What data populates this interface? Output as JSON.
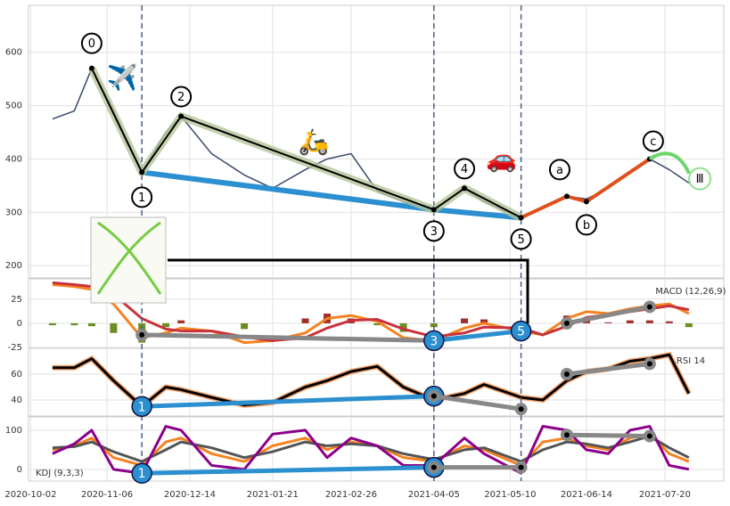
{
  "chart_data": [
    {
      "type": "line",
      "x": [
        "2020-10-12",
        "2020-10-22",
        "2020-10-30",
        "2020-11-09",
        "2020-11-22",
        "2020-12-03",
        "2020-12-10",
        "2020-12-24",
        "2021-01-08",
        "2021-01-21",
        "2021-02-05",
        "2021-02-15",
        "2021-02-26",
        "2021-03-10",
        "2021-03-22",
        "2021-04-05",
        "2021-04-19",
        "2021-04-28",
        "2021-05-15",
        "2021-05-25",
        "2021-06-05",
        "2021-06-14",
        "2021-06-24",
        "2021-07-04",
        "2021-07-13",
        "2021-07-22",
        "2021-07-31"
      ],
      "series": [
        {
          "color": "#3a4a6b",
          "values": [
            475,
            490,
            570,
            490,
            375,
            450,
            480,
            410,
            370,
            345,
            380,
            400,
            410,
            340,
            320,
            305,
            345,
            320,
            290,
            310,
            330,
            325,
            345,
            375,
            400,
            380,
            355
          ]
        }
      ],
      "ylim": [
        177,
        688
      ],
      "yticks": [
        200,
        300,
        400,
        500,
        600
      ],
      "grid": true,
      "waves": [
        {
          "label": "0",
          "x": "2020-10-30",
          "y": 570
        },
        {
          "label": "1",
          "x": "2020-11-22",
          "y": 375
        },
        {
          "label": "2",
          "x": "2020-12-10",
          "y": 480
        },
        {
          "label": "3",
          "x": "2021-04-05",
          "y": 305
        },
        {
          "label": "4",
          "x": "2021-04-19",
          "y": 345
        },
        {
          "label": "5",
          "x": "2021-05-15",
          "y": 290
        },
        {
          "label": "a",
          "x": "2021-06-05",
          "y": 330
        },
        {
          "label": "b",
          "x": "2021-06-14",
          "y": 320
        },
        {
          "label": "c",
          "x": "2021-07-13",
          "y": 400
        }
      ],
      "annotations": [
        {
          "label": "✈️",
          "x": "2020-11-13",
          "y": 552
        },
        {
          "label": "🛵",
          "x": "2021-02-09",
          "y": 432
        },
        {
          "label": "🚗",
          "x": "2021-05-06",
          "y": 400
        },
        {
          "label": "Ⅲ",
          "x": "2021-08-05",
          "y": 363
        }
      ]
    },
    {
      "type": "line",
      "label": "MACD (12,26,9)",
      "x": [
        "2020-10-12",
        "2020-10-22",
        "2020-10-30",
        "2020-11-09",
        "2020-11-22",
        "2020-12-03",
        "2020-12-10",
        "2020-12-24",
        "2021-01-08",
        "2021-01-21",
        "2021-02-05",
        "2021-02-15",
        "2021-02-26",
        "2021-03-10",
        "2021-03-22",
        "2021-04-05",
        "2021-04-19",
        "2021-04-28",
        "2021-05-15",
        "2021-05-25",
        "2021-06-05",
        "2021-06-14",
        "2021-06-24",
        "2021-07-04",
        "2021-07-13",
        "2021-07-22",
        "2021-07-31"
      ],
      "series": [
        {
          "color": "#f5821f",
          "values": [
            40,
            38,
            35,
            20,
            -15,
            -10,
            -5,
            -8,
            -20,
            -18,
            -10,
            5,
            8,
            2,
            -15,
            -18,
            -5,
            0,
            -8,
            -12,
            5,
            12,
            10,
            15,
            18,
            20,
            10
          ]
        },
        {
          "color": "#c8323c",
          "values": [
            42,
            40,
            38,
            30,
            5,
            -6,
            -8,
            -8,
            -14,
            -18,
            -15,
            -5,
            3,
            4,
            -6,
            -14,
            -10,
            -4,
            -5,
            -12,
            -3,
            6,
            9,
            12,
            15,
            18,
            14
          ]
        }
      ],
      "histogram": {
        "colors": [
          "#a0302a",
          "#6b8e23"
        ],
        "values": [
          -2,
          -2,
          -3,
          -10,
          -20,
          -4,
          3,
          0,
          -6,
          0,
          5,
          10,
          5,
          -2,
          -9,
          -4,
          5,
          4,
          -3,
          0,
          8,
          6,
          1,
          3,
          3,
          2,
          -4
        ]
      },
      "ylim": [
        -25,
        46
      ],
      "yticks": [
        -25,
        0,
        25
      ],
      "divergences": [
        {
          "color": "#888888",
          "x": [
            "2020-11-22",
            "2021-04-05"
          ],
          "values": [
            -12,
            -18
          ]
        },
        {
          "color": "#2b8fd0",
          "x": [
            "2021-04-05",
            "2021-05-15"
          ],
          "values": [
            -18,
            -8
          ],
          "labels": [
            "3",
            "5"
          ]
        },
        {
          "color": "#888888",
          "x": [
            "2021-06-05",
            "2021-07-13"
          ],
          "values": [
            0,
            17
          ]
        }
      ]
    },
    {
      "type": "line",
      "label": "RSI 14",
      "x": [
        "2020-10-12",
        "2020-10-22",
        "2020-10-30",
        "2020-11-09",
        "2020-11-22",
        "2020-12-03",
        "2020-12-10",
        "2020-12-24",
        "2021-01-08",
        "2021-01-21",
        "2021-02-05",
        "2021-02-15",
        "2021-02-26",
        "2021-03-10",
        "2021-03-22",
        "2021-04-05",
        "2021-04-19",
        "2021-04-28",
        "2021-05-15",
        "2021-05-25",
        "2021-06-05",
        "2021-06-14",
        "2021-06-24",
        "2021-07-04",
        "2021-07-13",
        "2021-07-22",
        "2021-07-31"
      ],
      "series": [
        {
          "color": "#000000",
          "values": [
            65,
            65,
            72,
            55,
            35,
            50,
            48,
            42,
            36,
            38,
            50,
            55,
            62,
            66,
            50,
            40,
            45,
            52,
            42,
            40,
            55,
            62,
            64,
            70,
            72,
            75,
            45
          ]
        }
      ],
      "ylim": [
        27.6,
        80
      ],
      "yticks": [
        40,
        60
      ],
      "divergences": [
        {
          "color": "#2b8fd0",
          "x": [
            "2020-11-22",
            "2021-04-05"
          ],
          "values": [
            35,
            43
          ],
          "labels": [
            "1",
            "3"
          ]
        },
        {
          "color": "#888888",
          "x": [
            "2021-04-05",
            "2021-05-15"
          ],
          "values": [
            43,
            33
          ]
        },
        {
          "color": "#888888",
          "x": [
            "2021-06-05",
            "2021-07-13"
          ],
          "values": [
            60,
            68
          ]
        }
      ]
    },
    {
      "type": "line",
      "label": "KDJ (9,3,3)",
      "x": [
        "2020-10-12",
        "2020-10-22",
        "2020-10-30",
        "2020-11-09",
        "2020-11-22",
        "2020-12-03",
        "2020-12-10",
        "2020-12-24",
        "2021-01-08",
        "2021-01-21",
        "2021-02-05",
        "2021-02-15",
        "2021-02-26",
        "2021-03-10",
        "2021-03-22",
        "2021-04-05",
        "2021-04-19",
        "2021-04-28",
        "2021-05-15",
        "2021-05-25",
        "2021-06-05",
        "2021-06-14",
        "2021-06-24",
        "2021-07-04",
        "2021-07-13",
        "2021-07-22",
        "2021-07-31"
      ],
      "series": [
        {
          "color": "#f5821f",
          "values": [
            50,
            60,
            80,
            30,
            10,
            70,
            80,
            40,
            20,
            60,
            80,
            50,
            70,
            60,
            30,
            20,
            60,
            50,
            10,
            70,
            80,
            60,
            50,
            80,
            90,
            40,
            20
          ]
        },
        {
          "color": "#555555",
          "values": [
            55,
            58,
            70,
            45,
            20,
            50,
            70,
            55,
            30,
            45,
            70,
            60,
            65,
            60,
            40,
            25,
            50,
            55,
            20,
            50,
            70,
            65,
            55,
            70,
            85,
            55,
            30
          ]
        },
        {
          "color": "#8b008b",
          "values": [
            40,
            65,
            100,
            0,
            -10,
            110,
            100,
            10,
            0,
            90,
            100,
            30,
            80,
            60,
            10,
            10,
            80,
            40,
            -10,
            110,
            100,
            50,
            40,
            100,
            110,
            10,
            0
          ]
        }
      ],
      "ylim": [
        -30,
        134
      ],
      "yticks": [
        0,
        100
      ],
      "xlim": [
        "2020-10-01",
        "2021-08-16"
      ],
      "xticks": [
        "2020-10-02",
        "2020-11-06",
        "2020-12-14",
        "2021-01-21",
        "2021-02-26",
        "2021-04-05",
        "2021-05-10",
        "2021-06-14",
        "2021-07-20"
      ],
      "divergences": [
        {
          "color": "#2b8fd0",
          "x": [
            "2020-11-22",
            "2021-04-05"
          ],
          "values": [
            -10,
            5
          ],
          "labels": [
            "1",
            "3"
          ]
        },
        {
          "color": "#888888",
          "x": [
            "2021-04-05",
            "2021-05-15"
          ],
          "values": [
            5,
            5
          ]
        },
        {
          "color": "#888888",
          "x": [
            "2021-06-05",
            "2021-07-13"
          ],
          "values": [
            88,
            85
          ]
        }
      ]
    }
  ]
}
